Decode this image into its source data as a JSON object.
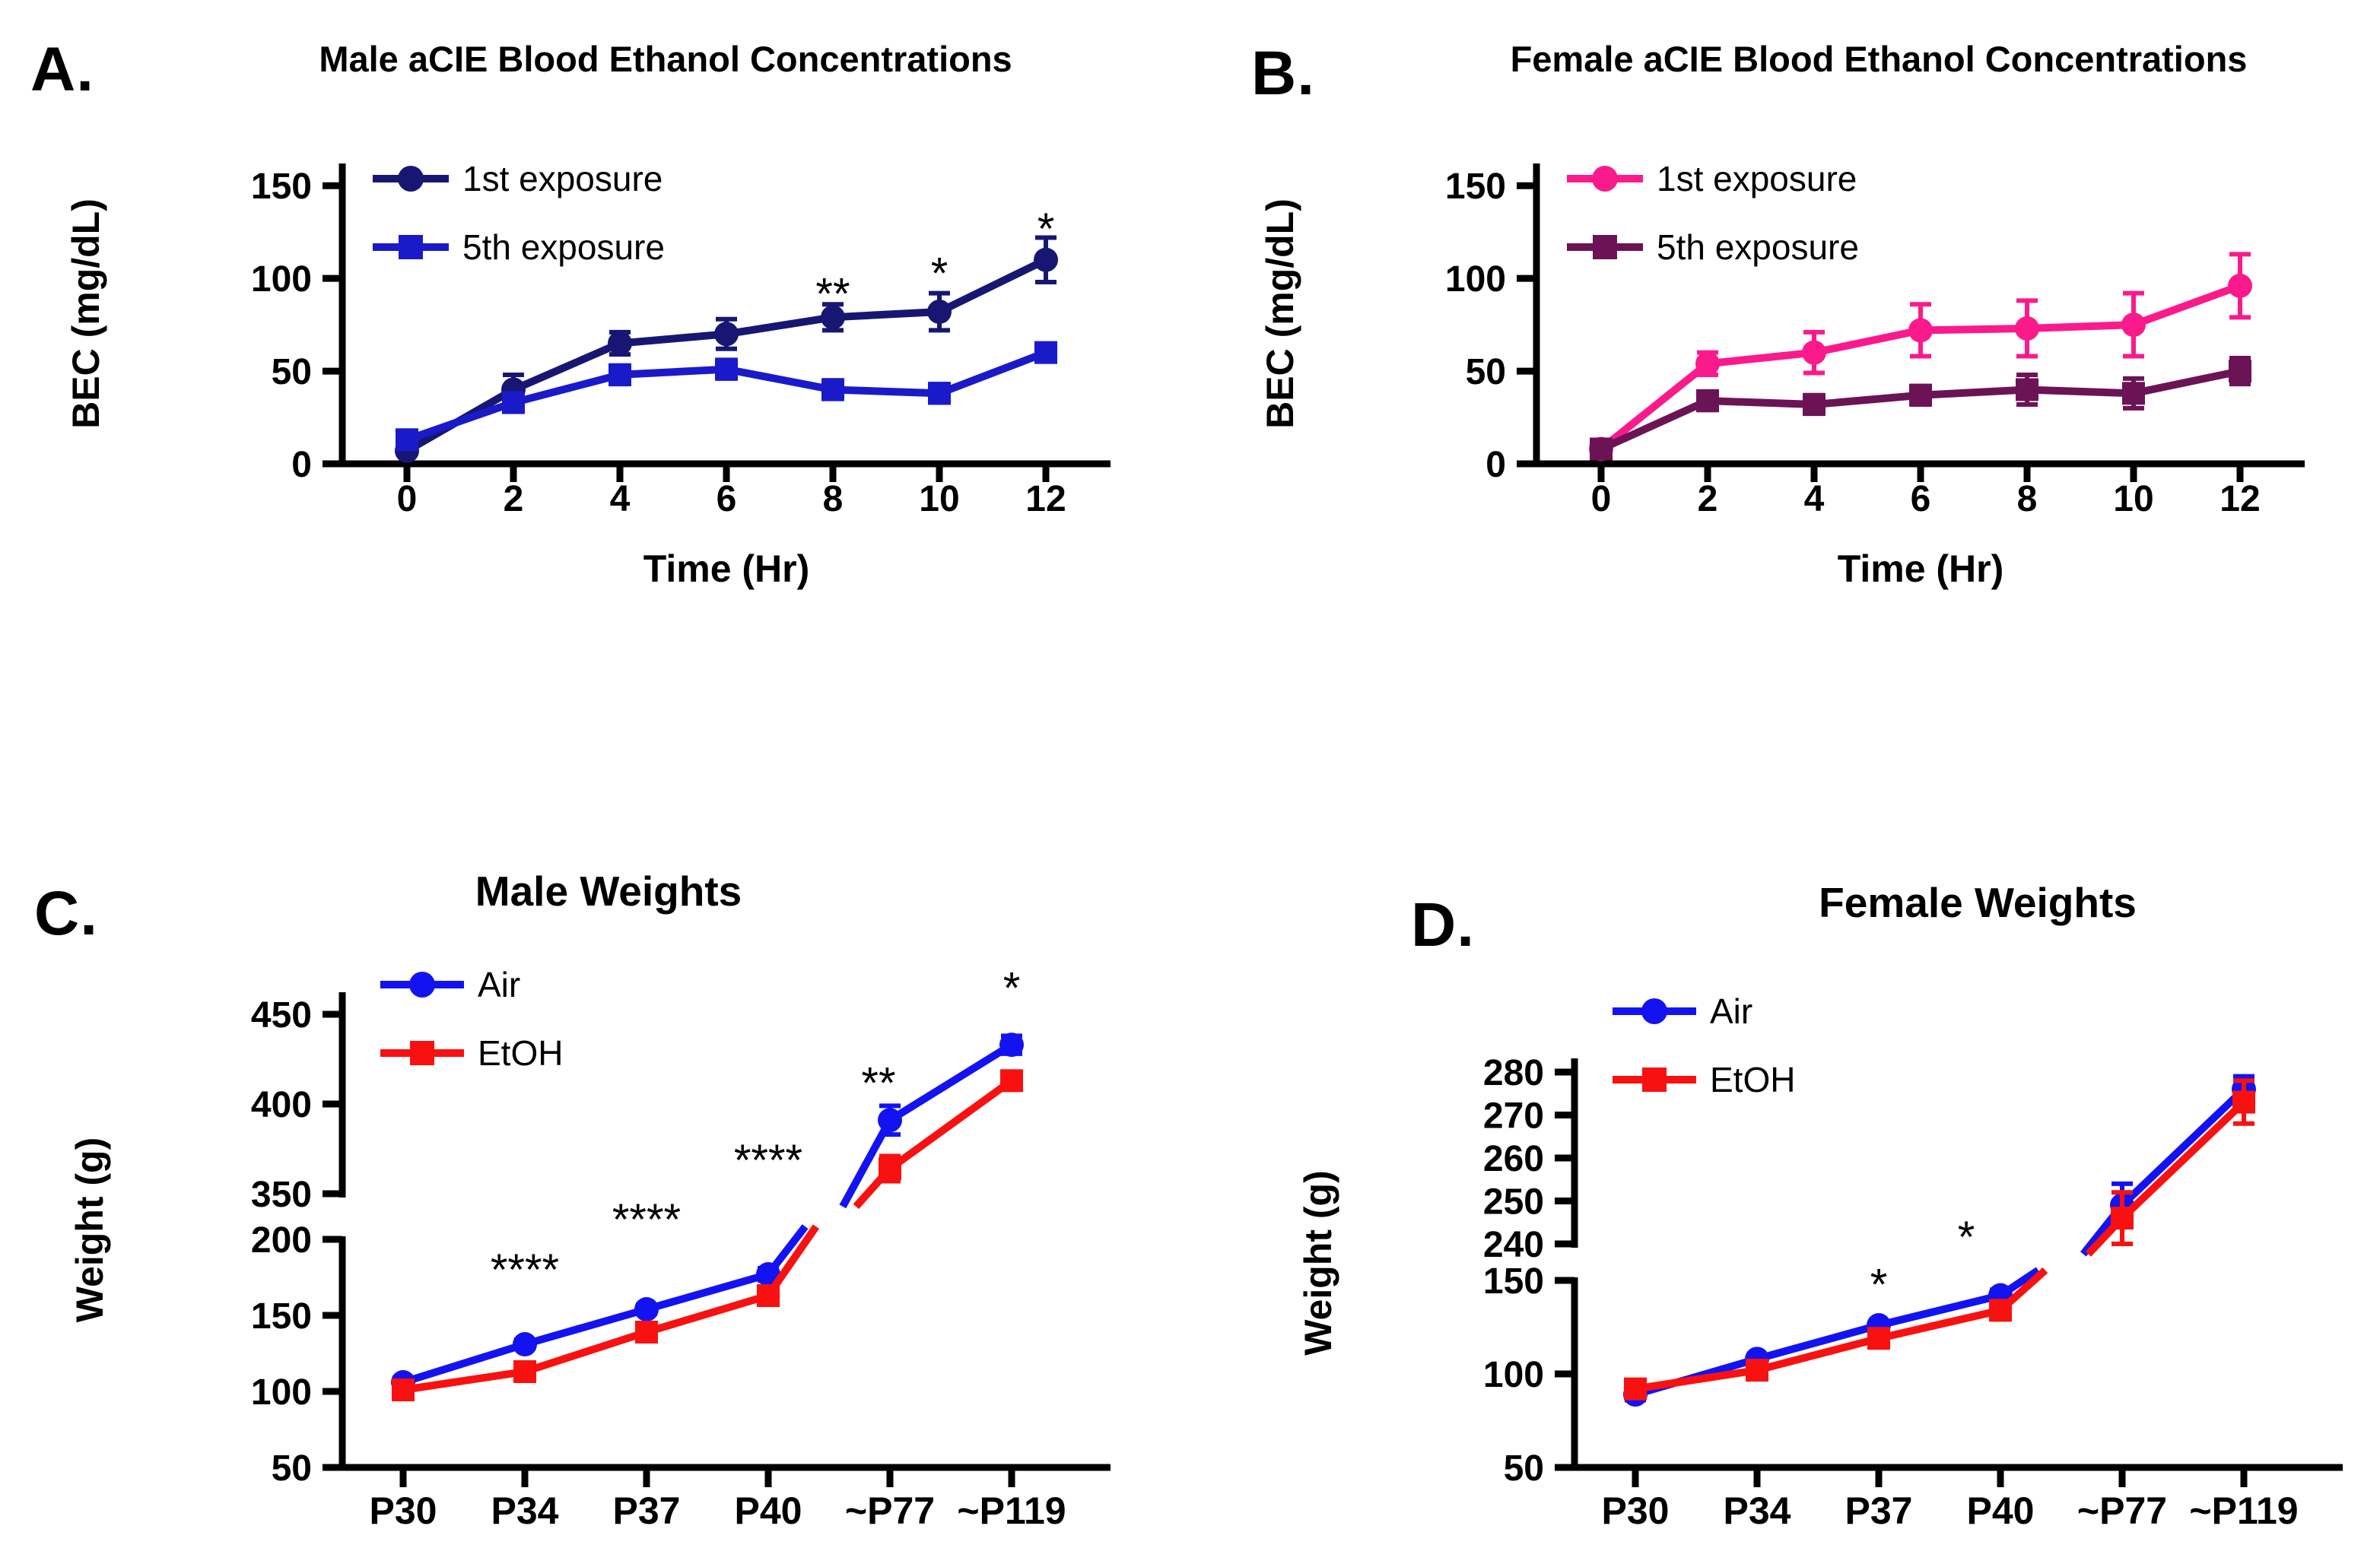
{
  "figure": {
    "background": "#ffffff",
    "text_color": "#000000"
  },
  "chart_data": [
    {
      "id": "A",
      "panel_label": "A.",
      "type": "line",
      "title": "Male aCIE Blood Ethanol Concentrations",
      "xlabel": "Time (Hr)",
      "ylabel": "BEC (mg/dL)",
      "x_type": "numeric",
      "x": [
        0,
        2,
        4,
        6,
        8,
        10,
        12
      ],
      "xticks": [
        0,
        2,
        4,
        6,
        8,
        10,
        12
      ],
      "ylim": [
        0,
        155
      ],
      "yticks": [
        0,
        50,
        100,
        150
      ],
      "grid": false,
      "legend_position": "top-left",
      "series": [
        {
          "name": "1st exposure",
          "marker": "circle",
          "color": "#171773",
          "values": [
            7,
            40,
            65,
            70,
            79,
            82,
            110
          ],
          "errors": [
            2,
            8,
            6,
            8,
            7,
            10,
            12
          ]
        },
        {
          "name": "5th exposure",
          "marker": "square",
          "color": "#1A1ACB",
          "values": [
            13,
            33,
            48,
            51,
            40,
            38,
            60
          ],
          "errors": [
            3,
            4,
            5,
            5,
            5,
            5,
            4
          ]
        }
      ],
      "annotations": [
        {
          "x": 8,
          "y": 95,
          "text": "**"
        },
        {
          "x": 10,
          "y": 106,
          "text": "*"
        },
        {
          "x": 12,
          "y": 130,
          "text": "*"
        }
      ]
    },
    {
      "id": "B",
      "panel_label": "B.",
      "type": "line",
      "title": "Female aCIE Blood Ethanol Concentrations",
      "xlabel": "Time (Hr)",
      "ylabel": "BEC (mg/dL)",
      "x_type": "numeric",
      "x": [
        0,
        2,
        4,
        6,
        8,
        10,
        12
      ],
      "xticks": [
        0,
        2,
        4,
        6,
        8,
        10,
        12
      ],
      "ylim": [
        0,
        155
      ],
      "yticks": [
        0,
        50,
        100,
        150
      ],
      "grid": false,
      "legend_position": "top-left",
      "series": [
        {
          "name": "1st exposure",
          "marker": "circle",
          "color": "#FB1A8B",
          "values": [
            8,
            54,
            60,
            72,
            73,
            75,
            96
          ],
          "errors": [
            2,
            6,
            11,
            14,
            15,
            17,
            17
          ]
        },
        {
          "name": "5th exposure",
          "marker": "square",
          "color": "#6C1356",
          "values": [
            8,
            34,
            32,
            37,
            40,
            38,
            50
          ],
          "errors": [
            2,
            5,
            5,
            5,
            8,
            8,
            7
          ]
        }
      ],
      "annotations": []
    },
    {
      "id": "C",
      "panel_label": "C.",
      "type": "line",
      "title": "Male Weights",
      "xlabel": "",
      "ylabel": "Weight (g)",
      "x_type": "category",
      "categories": [
        "P30",
        "P34",
        "P37",
        "P40",
        "~P77",
        "~P119"
      ],
      "y_break": {
        "lower_range": [
          50,
          200
        ],
        "upper_range": [
          350,
          470
        ],
        "lower_ticks": [
          50,
          100,
          150,
          200
        ],
        "upper_ticks": [
          350,
          400,
          450
        ]
      },
      "grid": false,
      "legend_position": "top-left",
      "series": [
        {
          "name": "Air",
          "marker": "circle",
          "color": "#1313F2",
          "values": [
            106,
            131,
            154,
            177,
            391,
            433
          ],
          "errors": [
            3,
            3,
            3,
            4,
            8,
            5
          ]
        },
        {
          "name": "EtOH",
          "marker": "square",
          "color": "#F91111",
          "values": [
            101,
            113,
            139,
            163,
            364,
            413
          ],
          "errors": [
            3,
            3,
            3,
            5,
            7,
            5
          ]
        }
      ],
      "annotations": [
        {
          "x_index": 1,
          "y": 184,
          "text": "****"
        },
        {
          "x_index": 2,
          "y": 285,
          "text": "****"
        },
        {
          "x_index": 3,
          "y": 372,
          "text": "****"
        },
        {
          "x_index": 4,
          "y": 415,
          "dx": -15,
          "text": "**"
        },
        {
          "x_index": 5,
          "y": 468,
          "text": "*"
        }
      ]
    },
    {
      "id": "D",
      "panel_label": "D.",
      "type": "line",
      "title": "Female Weights",
      "xlabel": "",
      "ylabel": "Weight (g)",
      "x_type": "category",
      "categories": [
        "P30",
        "P34",
        "P37",
        "P40",
        "~P77",
        "~P119"
      ],
      "y_break": {
        "lower_range": [
          50,
          150
        ],
        "upper_range": [
          240,
          283
        ],
        "lower_ticks": [
          50,
          100,
          150
        ],
        "upper_ticks": [
          240,
          250,
          260,
          270,
          280
        ]
      },
      "grid": false,
      "legend_position": "top-left",
      "series": [
        {
          "name": "Air",
          "marker": "circle",
          "color": "#1313F2",
          "values": [
            89,
            108,
            126,
            142,
            249,
            276
          ],
          "errors": [
            3,
            2,
            2,
            3,
            5,
            3
          ]
        },
        {
          "name": "EtOH",
          "marker": "square",
          "color": "#F91111",
          "values": [
            92,
            102,
            119,
            134,
            246,
            273
          ],
          "errors": [
            3,
            2,
            2,
            3,
            6,
            5
          ]
        }
      ],
      "annotations": [
        {
          "x_index": 2,
          "y": 155,
          "text": "*"
        },
        {
          "x_index": 3,
          "y": 243,
          "dx": -45,
          "text": "*"
        }
      ]
    }
  ]
}
